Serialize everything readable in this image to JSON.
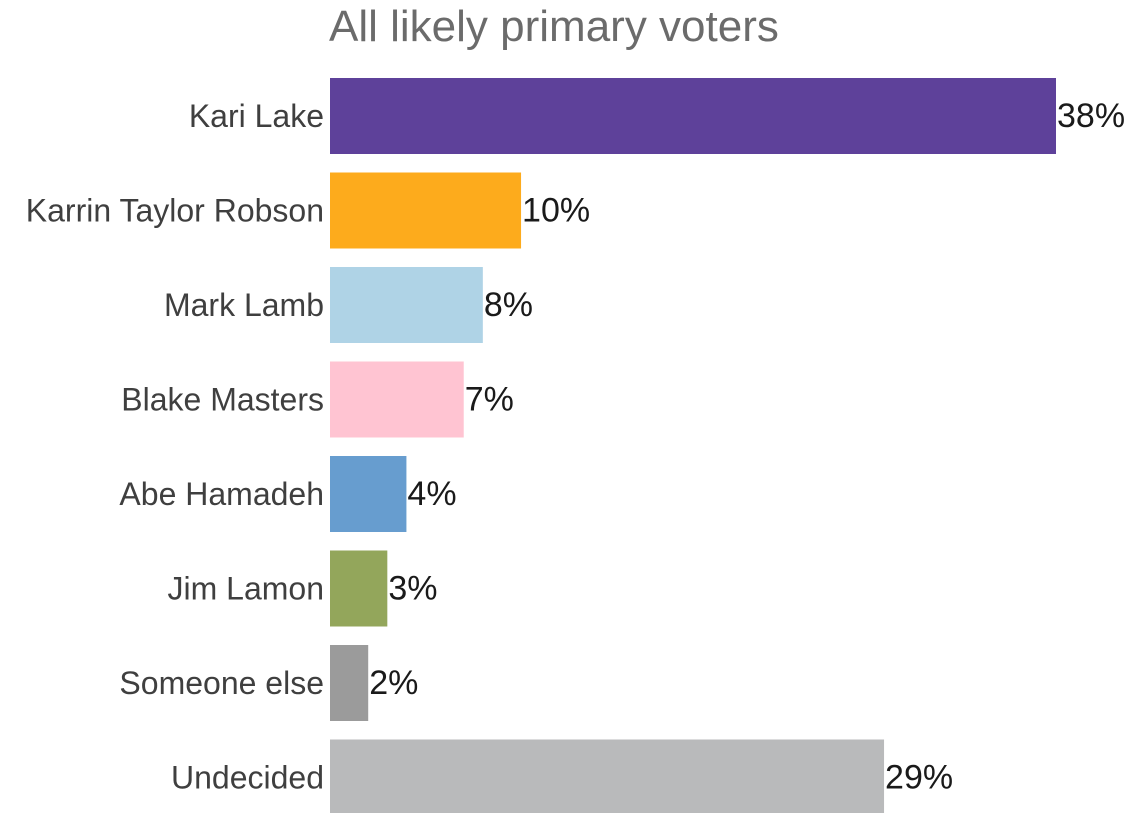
{
  "chart_data": {
    "type": "bar",
    "orientation": "horizontal",
    "title": "All likely primary voters",
    "xlabel": "",
    "ylabel": "",
    "categories": [
      "Kari Lake",
      "Karrin Taylor Robson",
      "Mark Lamb",
      "Blake Masters",
      "Abe Hamadeh",
      "Jim Lamon",
      "Someone else",
      "Undecided"
    ],
    "values": [
      38,
      10,
      8,
      7,
      4,
      3,
      2,
      29
    ],
    "value_labels": [
      "38%",
      "10%",
      "8%",
      "7%",
      "4%",
      "3%",
      "2%",
      "29%"
    ],
    "colors": [
      "#5e419a",
      "#fdab1c",
      "#afd3e6",
      "#ffc4d2",
      "#679dcf",
      "#93a65b",
      "#9b9b9b",
      "#b9babb"
    ],
    "xlim": [
      0,
      38
    ],
    "grid": false,
    "legend": false
  }
}
